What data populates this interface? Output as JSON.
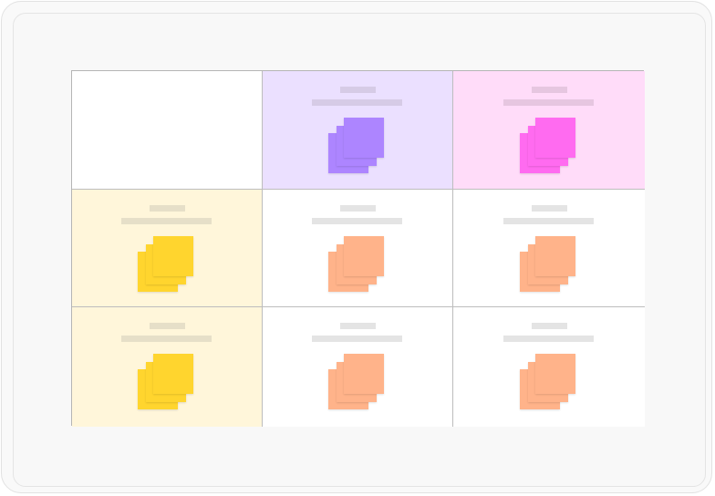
{
  "colors": {
    "frame": "#f8f8f8",
    "grid_line": "#bdbdbd",
    "placeholder_light": "#e4e4e4"
  },
  "grid": {
    "cells": [
      {
        "empty": true,
        "bg": "#ffffff"
      },
      {
        "bg": "#ebe0ff",
        "placeholder": "#d6cbe6",
        "sticky": "#ad85ff"
      },
      {
        "bg": "#ffdcf9",
        "placeholder": "#e6c6e0",
        "sticky": "#ff6bf0"
      },
      {
        "bg": "#fff6da",
        "placeholder": "#e6dfc8",
        "sticky": "#ffd52e"
      },
      {
        "bg": "#ffffff",
        "placeholder": "#e4e4e4",
        "sticky": "#ffb38a"
      },
      {
        "bg": "#ffffff",
        "placeholder": "#e4e4e4",
        "sticky": "#ffb38a"
      },
      {
        "bg": "#fff6da",
        "placeholder": "#e6dfc8",
        "sticky": "#ffd52e"
      },
      {
        "bg": "#ffffff",
        "placeholder": "#e4e4e4",
        "sticky": "#ffb38a"
      },
      {
        "bg": "#ffffff",
        "placeholder": "#e4e4e4",
        "sticky": "#ffb38a"
      }
    ]
  }
}
